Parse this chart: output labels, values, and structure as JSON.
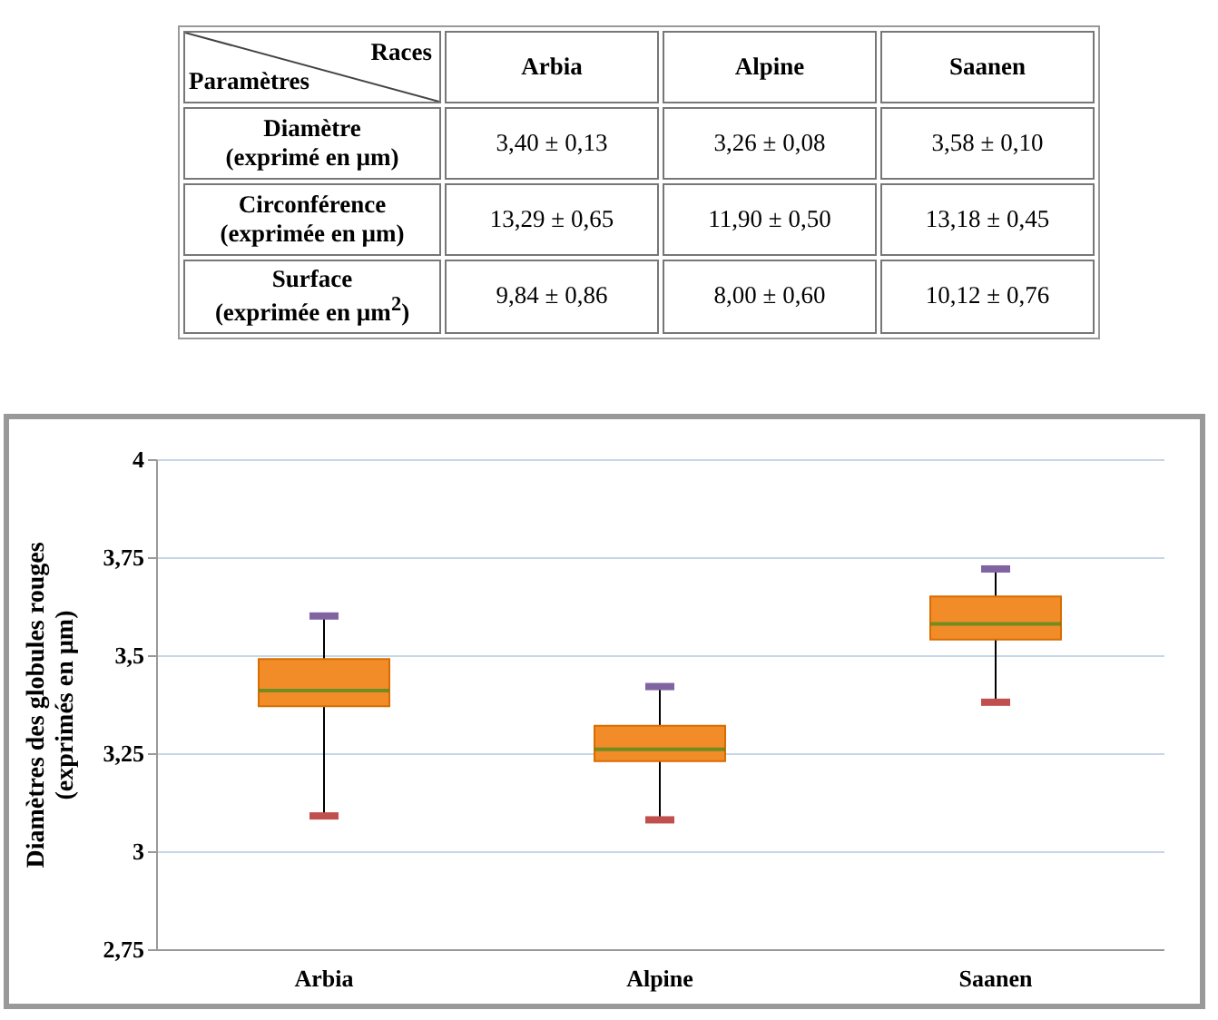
{
  "chart_data": [
    {
      "type": "other",
      "xlabel": "Races",
      "ylabel": "Paramètres",
      "categories": [
        "Arbia",
        "Alpine",
        "Saanen"
      ],
      "y_categories": [
        "Diamètre\n(exprimé en µm)",
        "Circonférence\n(exprimée en µm)",
        "Surface\n(exprimée en µm$^{2}$)"
      ],
      "cell_labels": [
        [
          "3,40 ± 0,13",
          "3,26 ± 0,08",
          "3,58 ± 0,10"
        ],
        [
          "13,29 ± 0,65",
          "11,90 ± 0,50",
          "13,18 ± 0,45"
        ],
        [
          "9,84 ± 0,86",
          "8,00 ± 0,60",
          "10,12 ± 0,76"
        ]
      ]
    },
    {
      "type": "box",
      "ylabel": "Diamètres des globules rouges\n(exprimés en µm)",
      "categories": [
        "Arbia",
        "Alpine",
        "Saanen"
      ],
      "ylim": [
        2.75,
        4
      ],
      "yticks": [
        {
          "value": 2.75,
          "label": "2,75"
        },
        {
          "value": 3,
          "label": "3"
        },
        {
          "value": 3.25,
          "label": "3,25"
        },
        {
          "value": 3.5,
          "label": "3,5"
        },
        {
          "value": 3.75,
          "label": "3,75"
        },
        {
          "value": 4,
          "label": "4"
        }
      ],
      "grid": "y",
      "series": [
        {
          "color": "#f28c28",
          "boxes": [
            {
              "low": 3.09,
              "q1": 3.37,
              "median": 3.41,
              "q3": 3.49,
              "high": 3.6
            },
            {
              "low": 3.08,
              "q1": 3.23,
              "median": 3.26,
              "q3": 3.32,
              "high": 3.42
            },
            {
              "low": 3.38,
              "q1": 3.54,
              "median": 3.58,
              "q3": 3.65,
              "high": 3.72
            }
          ]
        }
      ]
    }
  ]
}
